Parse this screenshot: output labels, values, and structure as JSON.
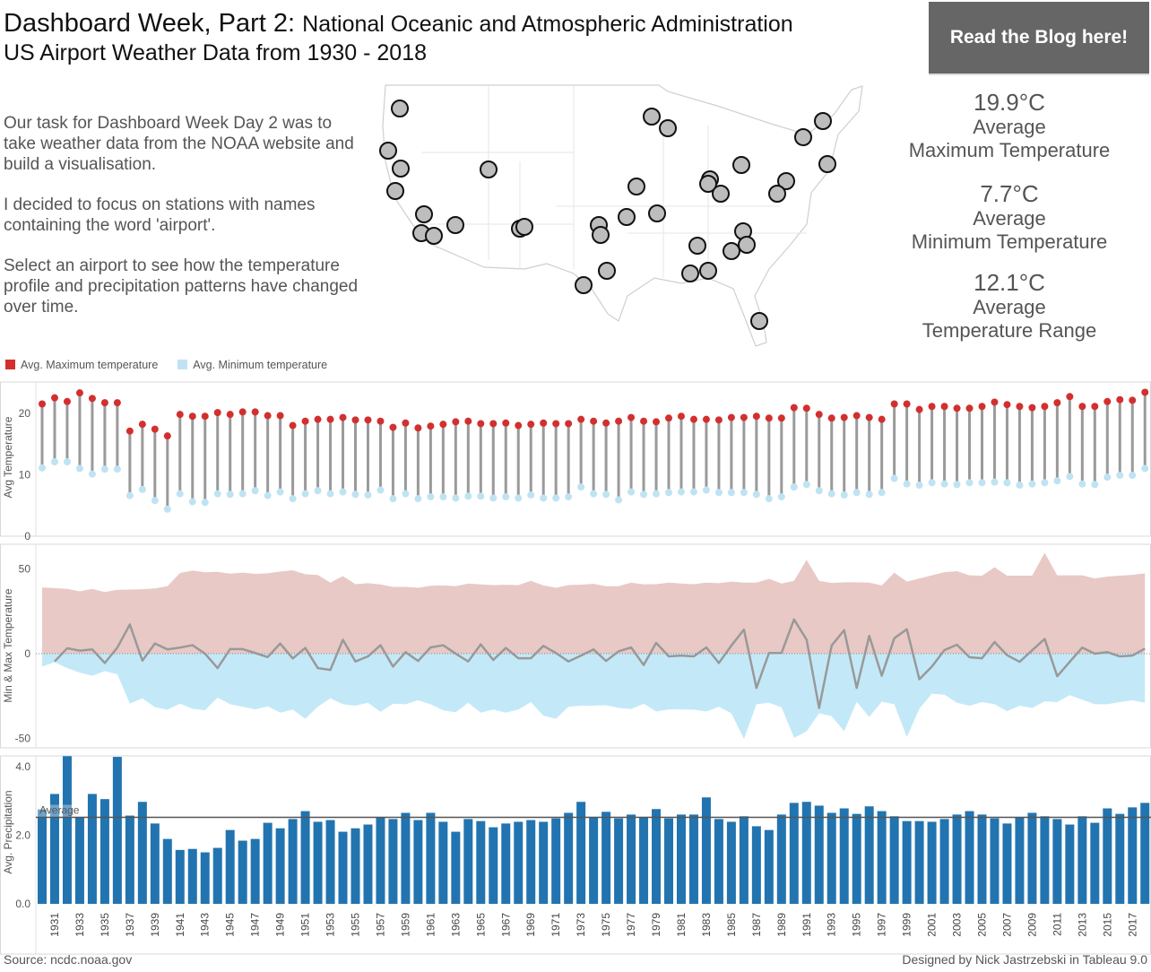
{
  "header": {
    "title_main": "Dashboard Week, Part 2:",
    "title_sub": "National Oceanic and Atmospheric Administration",
    "title_line2": "US Airport Weather Data from 1930 - 2018",
    "blog_button": "Read the Blog here!"
  },
  "description": [
    "Our task for Dashboard Week Day 2 was to take weather data from the NOAA website and build a visualisation.",
    "I decided to focus on stations with names containing the word 'airport'.",
    "Select an airport to see how the temperature profile and precipitation patterns have changed over time."
  ],
  "kpis": [
    {
      "value": "19.9°C",
      "line1": "Average",
      "line2": "Maximum Temperature"
    },
    {
      "value": "7.7°C",
      "line1": "Average",
      "line2": "Minimum Temperature"
    },
    {
      "value": "12.1°C",
      "line1": "Average",
      "line2": "Temperature Range"
    }
  ],
  "map": {
    "type": "map",
    "region": "United States",
    "marker_color": "#bdbdbd",
    "marker_outline": "#111111",
    "marker_count": 36
  },
  "legend": [
    {
      "label": "Avg. Maximum temperature",
      "color": "#d32f2f"
    },
    {
      "label": "Avg. Minimum temperature",
      "color": "#bfe3f3"
    }
  ],
  "footer": {
    "source": "Source: ncdc.noaa.gov",
    "credit": "Designed by Nick Jastrzebski in Tableau 9.0"
  },
  "chart_data": [
    {
      "type": "dumbbell",
      "ylabel": "Avg Temperature",
      "yticks": [
        "0",
        "10",
        "20"
      ],
      "ylim": [
        0,
        24
      ],
      "x_start": 1930,
      "x_end": 2018,
      "series": [
        {
          "name": "Avg. Maximum temperature",
          "color": "#d32f2f",
          "values": [
            21.5,
            22.5,
            21.9,
            23.3,
            22.4,
            21.7,
            21.7,
            17.1,
            18.2,
            17.4,
            16.3,
            19.8,
            19.5,
            19.5,
            20.1,
            19.8,
            20.2,
            20.2,
            19.6,
            19.6,
            18.0,
            18.7,
            19.0,
            19.0,
            19.3,
            18.9,
            18.9,
            18.7,
            17.7,
            18.4,
            17.6,
            17.9,
            18.2,
            18.6,
            18.7,
            18.3,
            18.3,
            18.4,
            18.0,
            18.2,
            18.4,
            18.3,
            18.3,
            19.0,
            18.7,
            18.4,
            18.7,
            19.3,
            18.7,
            18.6,
            19.2,
            19.5,
            19.0,
            19.0,
            18.9,
            19.3,
            19.3,
            19.5,
            19.2,
            19.2,
            20.9,
            20.8,
            19.8,
            19.2,
            19.3,
            19.6,
            19.3,
            19.0,
            21.5,
            21.5,
            20.6,
            21.1,
            21.1,
            20.8,
            20.8,
            21.1,
            21.8,
            21.4,
            21.1,
            20.9,
            21.1,
            21.7,
            22.7,
            21.1,
            21.1,
            21.9,
            22.2,
            22.1,
            23.4
          ]
        },
        {
          "name": "Avg. Minimum temperature",
          "color": "#bfe3f3",
          "values": [
            11.1,
            12.1,
            12.1,
            11.0,
            10.1,
            10.9,
            10.9,
            6.6,
            7.6,
            5.8,
            4.4,
            6.9,
            5.6,
            5.5,
            6.9,
            6.8,
            6.9,
            7.4,
            6.6,
            7.2,
            6.1,
            6.9,
            7.4,
            6.9,
            7.2,
            6.8,
            6.7,
            7.5,
            6.1,
            6.9,
            6.1,
            6.4,
            6.4,
            6.2,
            6.5,
            6.5,
            6.2,
            6.4,
            6.2,
            6.7,
            6.2,
            6.2,
            6.4,
            8.0,
            6.9,
            6.8,
            5.9,
            7.2,
            6.8,
            6.9,
            7.1,
            7.2,
            7.2,
            7.5,
            7.1,
            7.1,
            7.1,
            6.8,
            6.1,
            6.4,
            8.0,
            8.4,
            7.4,
            6.9,
            6.7,
            7.1,
            6.8,
            7.1,
            9.4,
            8.5,
            8.3,
            8.7,
            8.5,
            8.4,
            8.7,
            8.7,
            8.8,
            8.7,
            8.3,
            8.5,
            8.7,
            9.0,
            9.7,
            8.5,
            8.4,
            9.6,
            9.9,
            9.9,
            11.0
          ]
        }
      ]
    },
    {
      "type": "area",
      "ylabel": "Min & Max Temperature",
      "yticks": [
        "-50",
        "0",
        "50"
      ],
      "ylim": [
        -55,
        62
      ],
      "x_start": 1930,
      "x_end": 2018,
      "series": [
        {
          "color": "#e8c9c6",
          "values": [
            39.1,
            38.7,
            38.2,
            36.8,
            38.2,
            36.4,
            37.7,
            37.8,
            38.0,
            38.5,
            39.8,
            47.6,
            49.0,
            48.1,
            48.3,
            47.2,
            47.8,
            47.1,
            47.4,
            48.5,
            49.2,
            46.9,
            46.4,
            41.9,
            45.8,
            41.0,
            41.6,
            40.9,
            39.4,
            39.4,
            38.9,
            40.1,
            40.3,
            39.8,
            41.4,
            40.9,
            40.5,
            40.7,
            40.5,
            43.0,
            40.3,
            38.9,
            40.5,
            40.7,
            41.2,
            39.8,
            39.8,
            41.9,
            40.9,
            41.0,
            41.9,
            41.4,
            41.0,
            41.9,
            41.6,
            42.5,
            41.9,
            41.9,
            44.2,
            41.4,
            43.0,
            55.4,
            43.0,
            41.7,
            42.1,
            42.1,
            41.9,
            40.3,
            47.8,
            42.5,
            44.4,
            46.2,
            48.1,
            48.7,
            46.2,
            46.0,
            51.0,
            46.0,
            46.0,
            46.0,
            59.5,
            46.2,
            46.2,
            46.2,
            44.4,
            45.5,
            46.0,
            46.5,
            47.4
          ]
        },
        {
          "color": "#c3e9f8",
          "values": [
            -7.6,
            -5.0,
            -8.5,
            -11.2,
            -13.0,
            -10.3,
            -12.1,
            -29.5,
            -26.3,
            -31.6,
            -33.0,
            -29.5,
            -32.5,
            -33.4,
            -25.9,
            -29.8,
            -31.3,
            -32.9,
            -31.1,
            -34.8,
            -33.0,
            -38.4,
            -31.3,
            -26.3,
            -29.8,
            -30.7,
            -29.0,
            -34.3,
            -29.5,
            -29.8,
            -27.5,
            -29.8,
            -33.4,
            -34.6,
            -29.0,
            -34.8,
            -33.0,
            -34.8,
            -33.0,
            -28.6,
            -36.6,
            -38.4,
            -31.3,
            -30.7,
            -30.7,
            -30.4,
            -32.0,
            -32.7,
            -29.5,
            -34.1,
            -32.9,
            -32.9,
            -33.0,
            -34.1,
            -31.3,
            -35.2,
            -50.3,
            -29.8,
            -29.0,
            -31.6,
            -49.7,
            -45.8,
            -35.2,
            -36.9,
            -45.8,
            -28.4,
            -37.3,
            -28.4,
            -29.8,
            -49.2,
            -32.5,
            -23.6,
            -24.2,
            -29.0,
            -30.7,
            -28.6,
            -29.8,
            -33.9,
            -30.7,
            -32.1,
            -28.1,
            -28.6,
            -24.5,
            -27.2,
            -29.8,
            -29.8,
            -28.6,
            -27.5,
            -29.0
          ]
        },
        {
          "type": "line",
          "color": "#999999",
          "values": [
            null,
            -4.6,
            3.2,
            1.8,
            2.5,
            -5.5,
            3.6,
            17.2,
            -4.1,
            6.0,
            2.5,
            3.6,
            5.0,
            0,
            -8.5,
            2.7,
            2.7,
            0.4,
            -2.0,
            6.0,
            -2.8,
            3.4,
            -8.5,
            -9.6,
            8.2,
            -4.6,
            -1.6,
            5.0,
            -7.6,
            0.9,
            -4.3,
            3.7,
            5.0,
            0,
            -4.6,
            5.5,
            -3.7,
            3.4,
            -2.7,
            -2.7,
            4.6,
            0.4,
            -4.6,
            -1.1,
            2.5,
            -4.3,
            1.4,
            3.7,
            -6.7,
            6.4,
            -1.6,
            -1.1,
            -1.6,
            3.7,
            -5.5,
            4.8,
            14.2,
            -20.2,
            0.4,
            0.4,
            20.2,
            8.3,
            -32.0,
            4.8,
            13.9,
            -20.2,
            10.5,
            -13.0,
            9.1,
            14.4,
            -15.1,
            -7.6,
            2.1,
            5.3,
            -2.1,
            -2.7,
            6.9,
            -0.9,
            -4.8,
            2.0,
            8.7,
            -13.3,
            -4.8,
            3.6,
            0,
            0.9,
            -1.6,
            -1.1,
            3.0
          ]
        }
      ]
    },
    {
      "type": "bar",
      "ylabel": "Avg. Precipitation",
      "yticks": [
        "0.0",
        "2.0",
        "4.0"
      ],
      "ylim": [
        0,
        4.5
      ],
      "x_start": 1930,
      "x_end": 2018,
      "xtick_labels": [
        "1931",
        "1933",
        "1935",
        "1937",
        "1939",
        "1941",
        "1943",
        "1945",
        "1947",
        "1949",
        "1951",
        "1953",
        "1955",
        "1957",
        "1959",
        "1961",
        "1963",
        "1965",
        "1967",
        "1969",
        "1971",
        "1973",
        "1975",
        "1977",
        "1979",
        "1981",
        "1983",
        "1985",
        "1987",
        "1989",
        "1991",
        "1993",
        "1995",
        "1997",
        "1999",
        "2001",
        "2003",
        "2005",
        "2007",
        "2009",
        "2011",
        "2013",
        "2015",
        "2017"
      ],
      "color": "#2274b0",
      "values": [
        2.75,
        3.2,
        4.3,
        2.52,
        3.2,
        3.05,
        4.28,
        2.57,
        2.97,
        2.34,
        1.89,
        1.57,
        1.6,
        1.5,
        1.63,
        2.15,
        1.84,
        1.89,
        2.36,
        2.2,
        2.47,
        2.7,
        2.39,
        2.44,
        2.1,
        2.2,
        2.31,
        2.52,
        2.47,
        2.65,
        2.44,
        2.65,
        2.39,
        2.1,
        2.47,
        2.41,
        2.23,
        2.34,
        2.39,
        2.44,
        2.39,
        2.49,
        2.65,
        2.97,
        2.52,
        2.68,
        2.49,
        2.6,
        2.52,
        2.76,
        2.49,
        2.6,
        2.6,
        3.1,
        2.47,
        2.39,
        2.55,
        2.26,
        2.15,
        2.6,
        2.94,
        2.97,
        2.86,
        2.65,
        2.78,
        2.62,
        2.84,
        2.7,
        2.55,
        2.41,
        2.41,
        2.39,
        2.47,
        2.6,
        2.7,
        2.6,
        2.49,
        2.34,
        2.52,
        2.65,
        2.55,
        2.47,
        2.31,
        2.55,
        2.36,
        2.78,
        2.62,
        2.81,
        2.94
      ],
      "reference_line": {
        "label": "Average",
        "value": 2.52
      }
    }
  ]
}
